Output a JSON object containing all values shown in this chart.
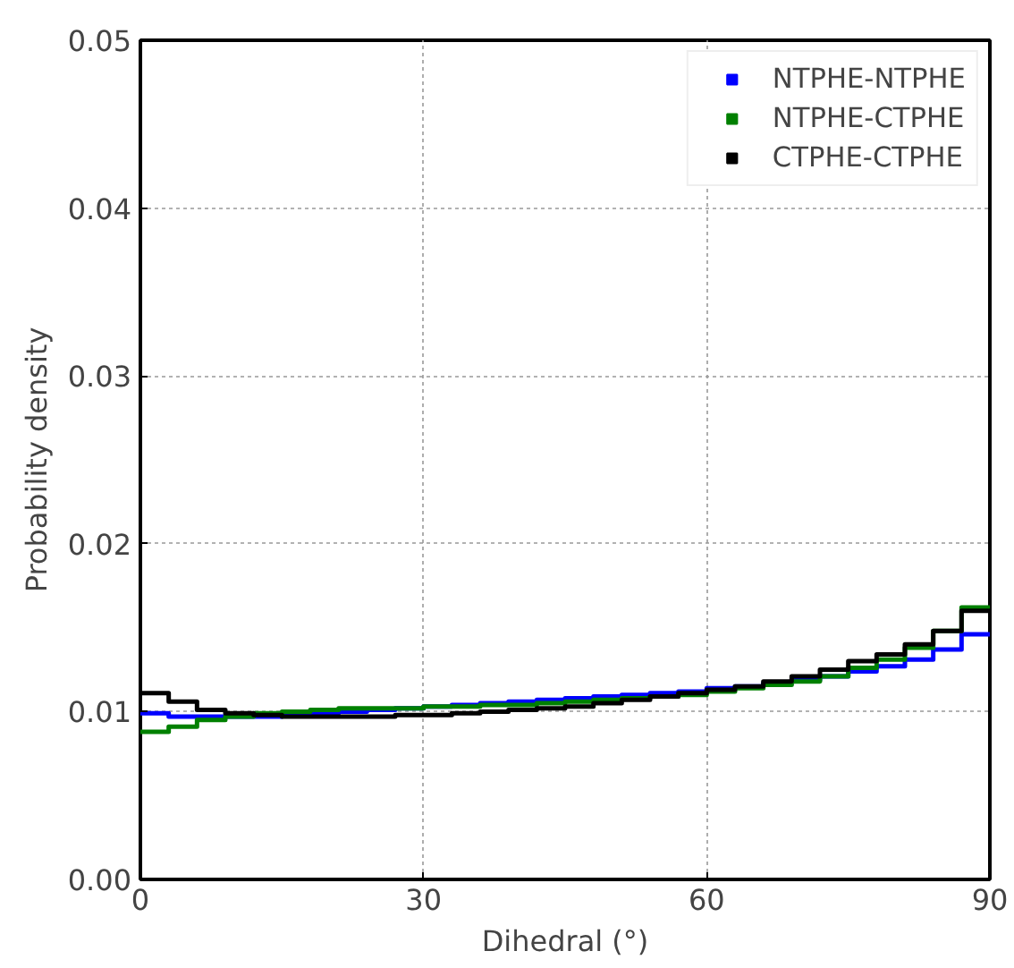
{
  "chart_data": {
    "type": "histogram",
    "xlabel": "Dihedral (°)",
    "ylabel": "Probability density",
    "bins": [
      0,
      3,
      6,
      9,
      12,
      15,
      18,
      21,
      24,
      27,
      30,
      33,
      36,
      39,
      42,
      45,
      48,
      51,
      54,
      57,
      60,
      63,
      66,
      69,
      72,
      75,
      78,
      81,
      84,
      87,
      90
    ],
    "series": [
      {
        "name": "NTPHE-NTPHE",
        "color": "#0000ff",
        "values": [
          0.0099,
          0.0097,
          0.0097,
          0.0097,
          0.0097,
          0.0098,
          0.0099,
          0.01,
          0.0101,
          0.0102,
          0.0103,
          0.0104,
          0.0105,
          0.0106,
          0.0107,
          0.0108,
          0.0109,
          0.011,
          0.0111,
          0.0112,
          0.0114,
          0.0115,
          0.0117,
          0.0119,
          0.0121,
          0.0124,
          0.0127,
          0.0131,
          0.0137,
          0.0146
        ]
      },
      {
        "name": "NTPHE-CTPHE",
        "color": "#008000",
        "values": [
          0.0088,
          0.0091,
          0.0095,
          0.0097,
          0.0099,
          0.01,
          0.0101,
          0.0102,
          0.0102,
          0.0102,
          0.0103,
          0.0103,
          0.0104,
          0.0104,
          0.0105,
          0.0106,
          0.0107,
          0.0108,
          0.0109,
          0.011,
          0.0112,
          0.0114,
          0.0116,
          0.0118,
          0.0121,
          0.0126,
          0.0131,
          0.0138,
          0.0148,
          0.0162
        ]
      },
      {
        "name": "CTPHE-CTPHE",
        "color": "#000000",
        "values": [
          0.0111,
          0.0106,
          0.0101,
          0.0099,
          0.0098,
          0.0097,
          0.0097,
          0.0097,
          0.0097,
          0.0098,
          0.0098,
          0.0099,
          0.01,
          0.0101,
          0.0102,
          0.0103,
          0.0105,
          0.0107,
          0.0109,
          0.0111,
          0.0113,
          0.0115,
          0.0118,
          0.0121,
          0.0125,
          0.013,
          0.0134,
          0.014,
          0.0148,
          0.016
        ]
      }
    ],
    "xlim": [
      0,
      90
    ],
    "ylim": [
      0,
      0.05
    ],
    "xticks": [
      0,
      30,
      60,
      90
    ],
    "yticks": [
      {
        "value": 0,
        "label": "0.00"
      },
      {
        "value": 0.01,
        "label": "0.01"
      },
      {
        "value": 0.02,
        "label": "0.02"
      },
      {
        "value": 0.03,
        "label": "0.03"
      },
      {
        "value": 0.04,
        "label": "0.04"
      },
      {
        "value": 0.05,
        "label": "0.05"
      }
    ],
    "grid": true,
    "legend": "top right"
  }
}
